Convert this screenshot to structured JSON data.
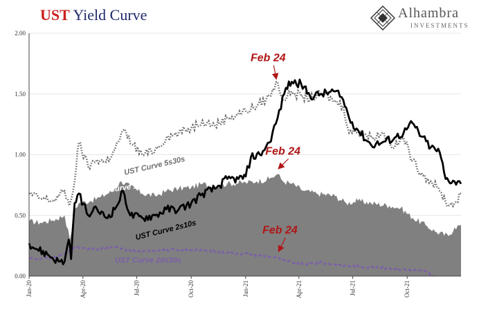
{
  "header": {
    "title_ust": "UST",
    "title_rest": "Yield Curve"
  },
  "logo": {
    "name": "Alhambra",
    "sub": "INVESTMENTS",
    "icon": "diamond-pattern-icon"
  },
  "colors": {
    "s10s30s_fill": "#808080",
    "s5s30s": "#6e6e6e",
    "s2s10s": "#000000",
    "s20s30s": "#7c5fa8",
    "annotation": "#b01515"
  },
  "chart_data": {
    "type": "line",
    "ylim": [
      0,
      2
    ],
    "yticks": [
      "0.00",
      "0.50",
      "1.00",
      "1.50",
      "2.00"
    ],
    "xlim": [
      "2020-01-01",
      "2021-12-31"
    ],
    "xticks": [
      {
        "label": "Jan-20",
        "date": "2020-01-01"
      },
      {
        "label": "Apr-20",
        "date": "2020-04-01"
      },
      {
        "label": "Jul-20",
        "date": "2020-07-01"
      },
      {
        "label": "Oct-20",
        "date": "2020-10-01"
      },
      {
        "label": "Jan-21",
        "date": "2021-01-01"
      },
      {
        "label": "Apr-21",
        "date": "2021-04-01"
      },
      {
        "label": "Jul-21",
        "date": "2021-07-01"
      },
      {
        "label": "Oct-21",
        "date": "2021-10-01"
      }
    ],
    "series": [
      {
        "key": "s10s30s",
        "name": "UST Curve 10s30s",
        "style": "area",
        "points": [
          [
            "2020-01-01",
            0.45
          ],
          [
            "2020-01-20",
            0.44
          ],
          [
            "2020-02-10",
            0.46
          ],
          [
            "2020-03-01",
            0.5
          ],
          [
            "2020-03-10",
            0.3
          ],
          [
            "2020-03-18",
            0.55
          ],
          [
            "2020-03-25",
            0.6
          ],
          [
            "2020-04-15",
            0.62
          ],
          [
            "2020-05-01",
            0.65
          ],
          [
            "2020-05-20",
            0.7
          ],
          [
            "2020-06-05",
            0.78
          ],
          [
            "2020-06-20",
            0.74
          ],
          [
            "2020-07-10",
            0.68
          ],
          [
            "2020-08-01",
            0.66
          ],
          [
            "2020-08-20",
            0.7
          ],
          [
            "2020-09-10",
            0.72
          ],
          [
            "2020-10-01",
            0.73
          ],
          [
            "2020-10-20",
            0.76
          ],
          [
            "2020-11-10",
            0.74
          ],
          [
            "2020-12-01",
            0.76
          ],
          [
            "2021-01-01",
            0.77
          ],
          [
            "2021-01-20",
            0.78
          ],
          [
            "2021-02-10",
            0.8
          ],
          [
            "2021-02-24",
            0.84
          ],
          [
            "2021-03-05",
            0.78
          ],
          [
            "2021-03-20",
            0.76
          ],
          [
            "2021-04-10",
            0.7
          ],
          [
            "2021-05-01",
            0.68
          ],
          [
            "2021-06-01",
            0.66
          ],
          [
            "2021-06-20",
            0.6
          ],
          [
            "2021-07-10",
            0.62
          ],
          [
            "2021-08-01",
            0.6
          ],
          [
            "2021-09-01",
            0.58
          ],
          [
            "2021-09-20",
            0.56
          ],
          [
            "2021-10-10",
            0.48
          ],
          [
            "2021-11-01",
            0.42
          ],
          [
            "2021-11-20",
            0.36
          ],
          [
            "2021-12-10",
            0.33
          ],
          [
            "2021-12-20",
            0.4
          ],
          [
            "2021-12-31",
            0.42
          ]
        ]
      },
      {
        "key": "s5s30s",
        "name": "UST Curve 5s30s",
        "style": "dotted",
        "points": [
          [
            "2020-01-01",
            0.68
          ],
          [
            "2020-01-20",
            0.64
          ],
          [
            "2020-02-10",
            0.62
          ],
          [
            "2020-03-01",
            0.7
          ],
          [
            "2020-03-09",
            0.58
          ],
          [
            "2020-03-18",
            0.78
          ],
          [
            "2020-03-25",
            1.1
          ],
          [
            "2020-04-10",
            0.9
          ],
          [
            "2020-04-25",
            0.96
          ],
          [
            "2020-05-10",
            0.94
          ],
          [
            "2020-05-25",
            1.04
          ],
          [
            "2020-06-08",
            1.2
          ],
          [
            "2020-06-25",
            1.08
          ],
          [
            "2020-07-10",
            1.0
          ],
          [
            "2020-08-01",
            1.04
          ],
          [
            "2020-08-20",
            1.14
          ],
          [
            "2020-09-10",
            1.18
          ],
          [
            "2020-10-01",
            1.22
          ],
          [
            "2020-10-20",
            1.28
          ],
          [
            "2020-11-10",
            1.24
          ],
          [
            "2020-12-01",
            1.3
          ],
          [
            "2021-01-01",
            1.36
          ],
          [
            "2021-01-20",
            1.4
          ],
          [
            "2021-02-10",
            1.48
          ],
          [
            "2021-02-24",
            1.6
          ],
          [
            "2021-03-05",
            1.45
          ],
          [
            "2021-03-20",
            1.52
          ],
          [
            "2021-04-05",
            1.48
          ],
          [
            "2021-04-20",
            1.46
          ],
          [
            "2021-05-10",
            1.5
          ],
          [
            "2021-06-01",
            1.44
          ],
          [
            "2021-06-15",
            1.4
          ],
          [
            "2021-06-25",
            1.18
          ],
          [
            "2021-07-10",
            1.2
          ],
          [
            "2021-08-01",
            1.14
          ],
          [
            "2021-08-20",
            1.18
          ],
          [
            "2021-09-10",
            1.06
          ],
          [
            "2021-09-25",
            1.14
          ],
          [
            "2021-10-10",
            0.95
          ],
          [
            "2021-10-25",
            0.85
          ],
          [
            "2021-11-10",
            0.78
          ],
          [
            "2021-11-25",
            0.7
          ],
          [
            "2021-12-10",
            0.58
          ],
          [
            "2021-12-20",
            0.6
          ],
          [
            "2021-12-31",
            0.68
          ]
        ]
      },
      {
        "key": "s2s10s",
        "name": "UST Curve 2s10s",
        "style": "solid",
        "points": [
          [
            "2020-01-01",
            0.27
          ],
          [
            "2020-01-15",
            0.22
          ],
          [
            "2020-02-01",
            0.18
          ],
          [
            "2020-02-20",
            0.12
          ],
          [
            "2020-03-01",
            0.12
          ],
          [
            "2020-03-08",
            0.3
          ],
          [
            "2020-03-12",
            0.14
          ],
          [
            "2020-03-18",
            0.6
          ],
          [
            "2020-03-25",
            0.68
          ],
          [
            "2020-04-10",
            0.5
          ],
          [
            "2020-04-25",
            0.55
          ],
          [
            "2020-05-10",
            0.48
          ],
          [
            "2020-05-25",
            0.55
          ],
          [
            "2020-06-08",
            0.7
          ],
          [
            "2020-06-20",
            0.5
          ],
          [
            "2020-07-10",
            0.48
          ],
          [
            "2020-08-01",
            0.5
          ],
          [
            "2020-08-20",
            0.55
          ],
          [
            "2020-09-10",
            0.55
          ],
          [
            "2020-10-01",
            0.6
          ],
          [
            "2020-10-20",
            0.68
          ],
          [
            "2020-11-10",
            0.72
          ],
          [
            "2020-12-01",
            0.8
          ],
          [
            "2020-12-20",
            0.8
          ],
          [
            "2021-01-01",
            0.82
          ],
          [
            "2021-01-10",
            0.98
          ],
          [
            "2021-01-25",
            1.0
          ],
          [
            "2021-02-10",
            1.1
          ],
          [
            "2021-02-24",
            1.3
          ],
          [
            "2021-03-10",
            1.55
          ],
          [
            "2021-03-20",
            1.6
          ],
          [
            "2021-04-05",
            1.58
          ],
          [
            "2021-04-20",
            1.48
          ],
          [
            "2021-05-10",
            1.5
          ],
          [
            "2021-06-01",
            1.52
          ],
          [
            "2021-06-15",
            1.45
          ],
          [
            "2021-06-25",
            1.3
          ],
          [
            "2021-07-10",
            1.2
          ],
          [
            "2021-08-01",
            1.08
          ],
          [
            "2021-08-20",
            1.1
          ],
          [
            "2021-09-10",
            1.14
          ],
          [
            "2021-09-25",
            1.18
          ],
          [
            "2021-10-10",
            1.26
          ],
          [
            "2021-10-25",
            1.15
          ],
          [
            "2021-11-10",
            1.06
          ],
          [
            "2021-11-25",
            1.02
          ],
          [
            "2021-12-05",
            0.8
          ],
          [
            "2021-12-20",
            0.78
          ],
          [
            "2021-12-31",
            0.76
          ]
        ]
      },
      {
        "key": "s20s30s",
        "name": "UST Curve 20s30s",
        "style": "dashed",
        "points": [
          [
            "2020-01-01",
            0.15
          ],
          [
            "2020-01-20",
            0.14
          ],
          [
            "2020-02-10",
            0.15
          ],
          [
            "2020-03-01",
            0.18
          ],
          [
            "2020-03-18",
            0.24
          ],
          [
            "2020-04-10",
            0.22
          ],
          [
            "2020-05-01",
            0.22
          ],
          [
            "2020-05-20",
            0.24
          ],
          [
            "2020-06-10",
            0.22
          ],
          [
            "2020-07-10",
            0.2
          ],
          [
            "2020-08-10",
            0.22
          ],
          [
            "2020-09-10",
            0.21
          ],
          [
            "2020-10-10",
            0.22
          ],
          [
            "2020-11-10",
            0.2
          ],
          [
            "2020-12-10",
            0.19
          ],
          [
            "2021-01-10",
            0.18
          ],
          [
            "2021-02-10",
            0.16
          ],
          [
            "2021-02-24",
            0.15
          ],
          [
            "2021-03-10",
            0.12
          ],
          [
            "2021-04-10",
            0.1
          ],
          [
            "2021-05-10",
            0.11
          ],
          [
            "2021-06-10",
            0.09
          ],
          [
            "2021-07-10",
            0.08
          ],
          [
            "2021-08-10",
            0.07
          ],
          [
            "2021-09-10",
            0.06
          ],
          [
            "2021-10-10",
            0.05
          ],
          [
            "2021-11-01",
            0.04
          ],
          [
            "2021-11-15",
            0.0
          ]
        ]
      }
    ],
    "series_labels": [
      {
        "key": "s5s30s",
        "text": "UST Curve 5s30s",
        "date": "2020-08-01",
        "value": 0.89,
        "rotate": -13,
        "color": "#6e6e6e"
      },
      {
        "key": "s10s30s",
        "text": "UST Curve 10s30s",
        "date": "2020-06-12",
        "value": 0.71,
        "rotate": -8,
        "color": "#ffffff"
      },
      {
        "key": "s2s10s",
        "text": "UST Curve 2s10s",
        "date": "2020-08-20",
        "value": 0.36,
        "rotate": -14,
        "color": "#000000"
      },
      {
        "key": "s20s30s",
        "text": "UST Curve 20s30s",
        "date": "2020-07-20",
        "value": 0.11,
        "rotate": 0,
        "color": "#7c5fa8"
      }
    ],
    "annotations": [
      {
        "text": "Feb 24",
        "date": "2021-02-24",
        "value": 1.6,
        "label_date": "2021-02-08",
        "label_value": 1.77
      },
      {
        "text": "Feb 24",
        "date": "2021-02-24",
        "value": 0.86,
        "label_date": "2021-03-05",
        "label_value": 1.0
      },
      {
        "text": "Feb 24",
        "date": "2021-02-24",
        "value": 0.18,
        "label_date": "2021-02-28",
        "label_value": 0.35
      }
    ]
  }
}
